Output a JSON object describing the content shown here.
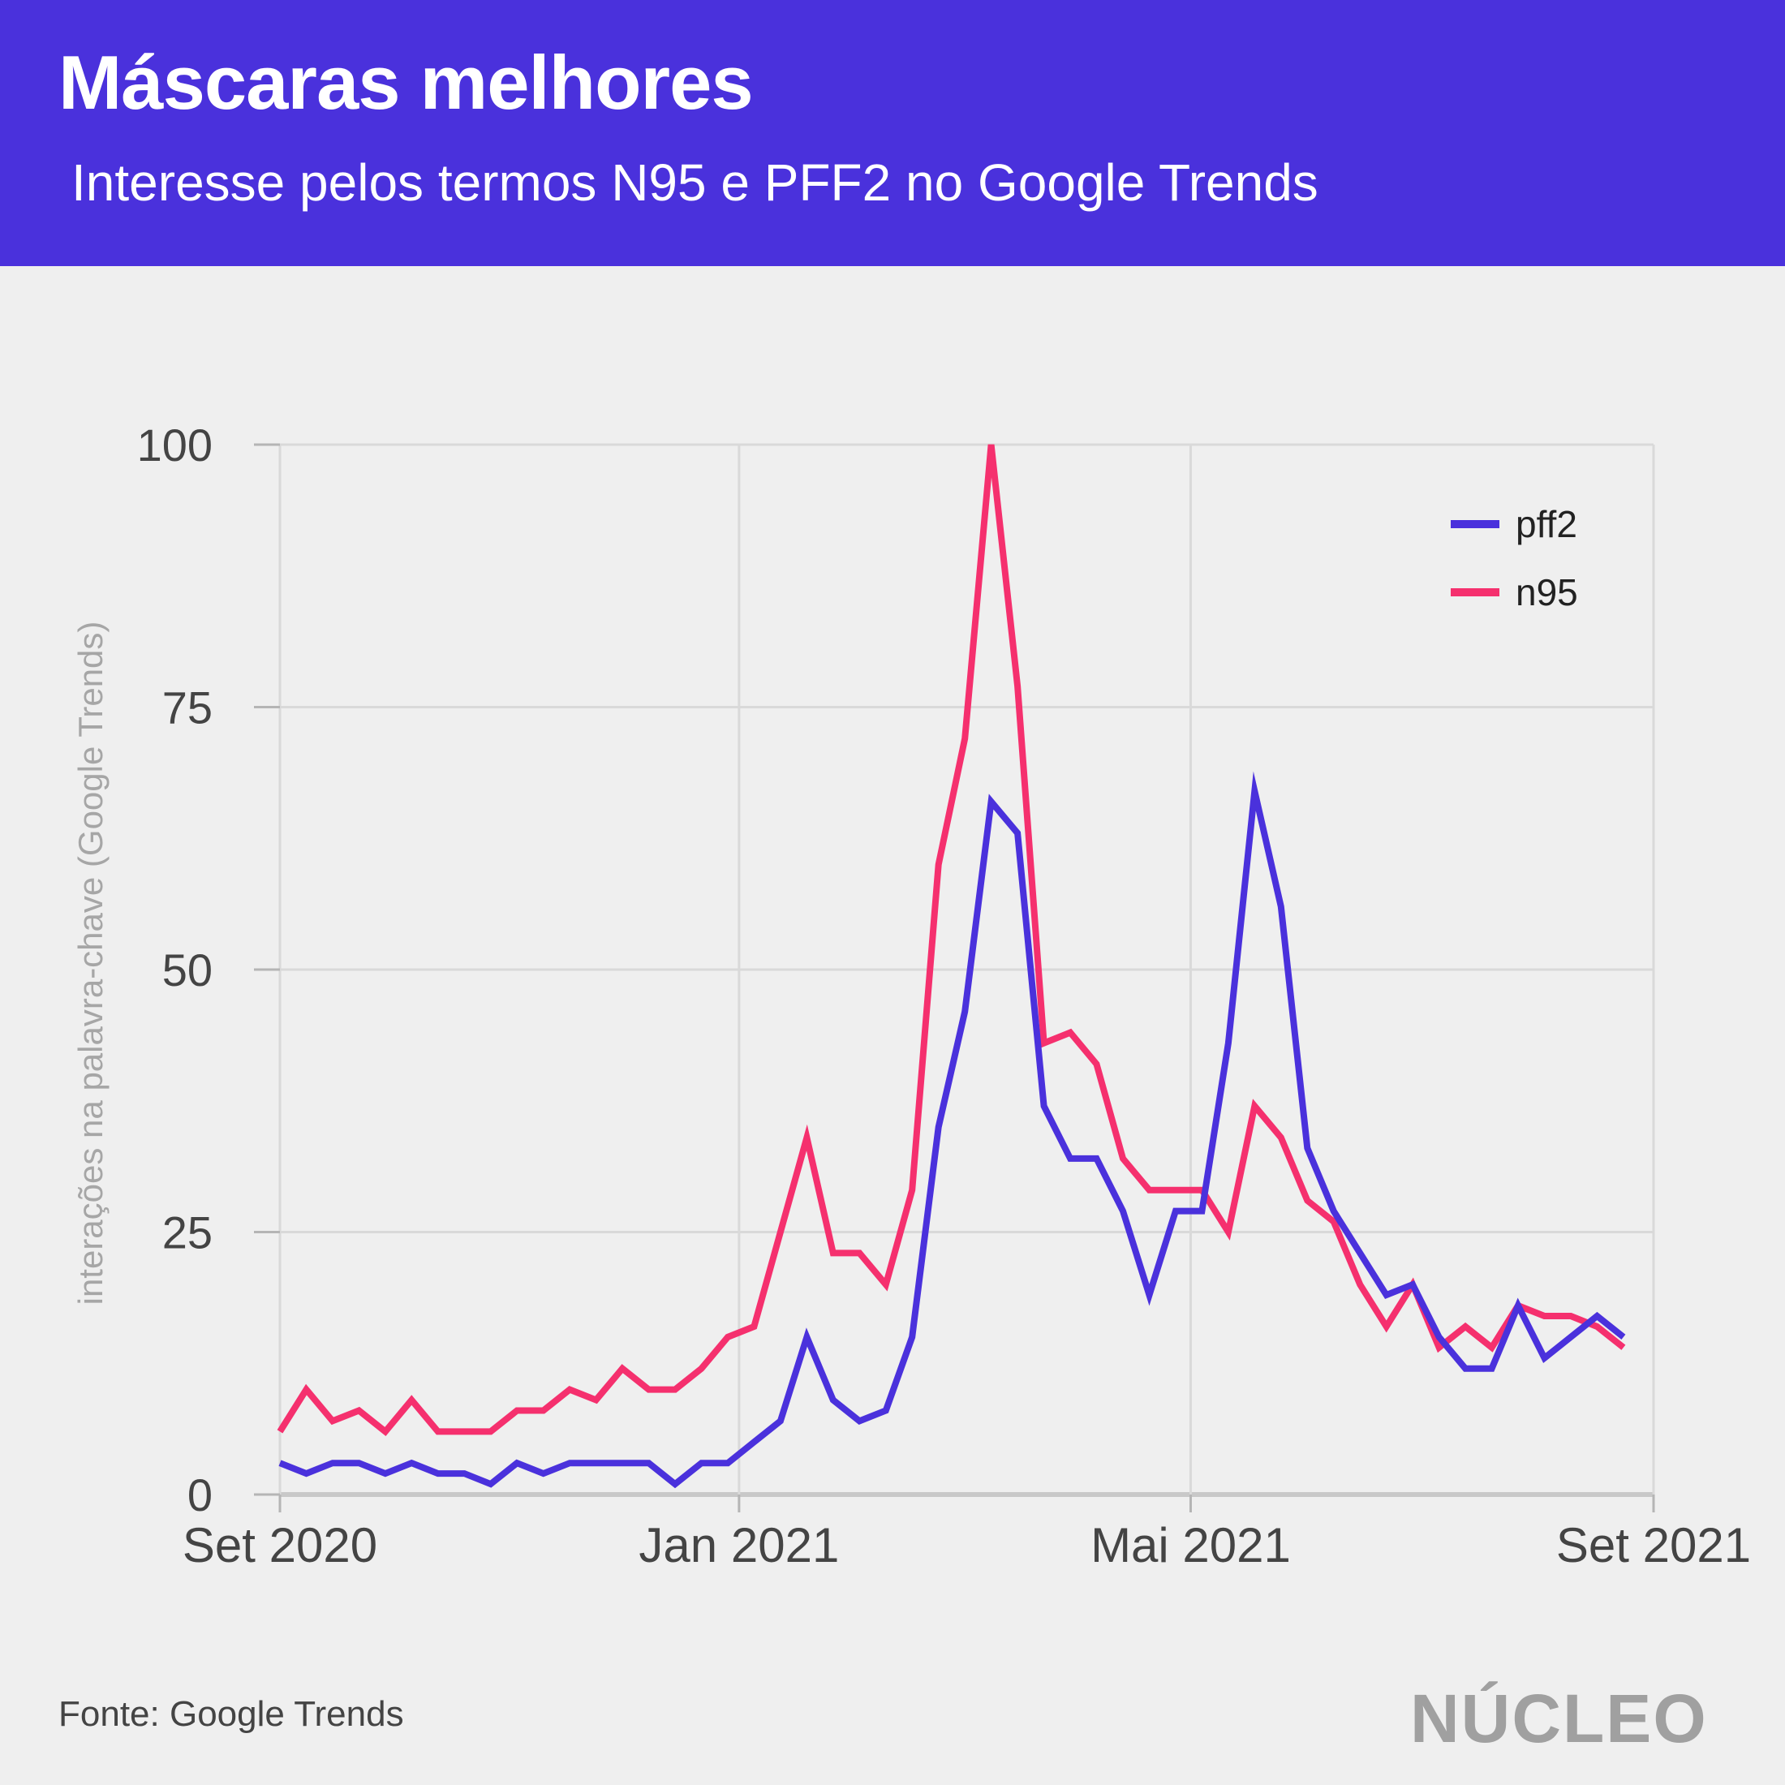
{
  "header": {
    "title": "Máscaras melhores",
    "subtitle": "Interesse pelos termos N95 e PFF2 no Google Trends"
  },
  "footer": {
    "source": "Fonte: Google Trends",
    "logo": "NÚCLEO"
  },
  "colors": {
    "header_bg": "#4a31dc",
    "pff2": "#4a31dc",
    "n95": "#f5306e",
    "grid": "#d9d9d9",
    "ylabel": "#a6a6a6"
  },
  "chart_data": {
    "type": "line",
    "ylabel": "interações na palavra-chave (Google Trends)",
    "xlabel": "",
    "ylim": [
      0,
      100
    ],
    "yticks": [
      0,
      25,
      50,
      75,
      100
    ],
    "xlim": [
      "2020-09-01",
      "2021-09-01"
    ],
    "xticks": [
      {
        "date": "2020-09-01",
        "label": "Set 2020"
      },
      {
        "date": "2021-01-01",
        "label": "Jan 2021"
      },
      {
        "date": "2021-05-01",
        "label": "Mai 2021"
      },
      {
        "date": "2021-09-01",
        "label": "Set 2021"
      }
    ],
    "grid": true,
    "legend_position": "top-right",
    "x": [
      "2020-09-01",
      "2020-09-08",
      "2020-09-15",
      "2020-09-22",
      "2020-09-29",
      "2020-10-06",
      "2020-10-13",
      "2020-10-20",
      "2020-10-27",
      "2020-11-03",
      "2020-11-10",
      "2020-11-17",
      "2020-11-24",
      "2020-12-01",
      "2020-12-08",
      "2020-12-15",
      "2020-12-22",
      "2020-12-29",
      "2021-01-05",
      "2021-01-12",
      "2021-01-19",
      "2021-01-26",
      "2021-02-02",
      "2021-02-09",
      "2021-02-16",
      "2021-02-23",
      "2021-03-02",
      "2021-03-09",
      "2021-03-16",
      "2021-03-23",
      "2021-03-30",
      "2021-04-06",
      "2021-04-13",
      "2021-04-20",
      "2021-04-27",
      "2021-05-04",
      "2021-05-11",
      "2021-05-18",
      "2021-05-25",
      "2021-06-01",
      "2021-06-08",
      "2021-06-15",
      "2021-06-22",
      "2021-06-29",
      "2021-07-06",
      "2021-07-13",
      "2021-07-20",
      "2021-07-27",
      "2021-08-03",
      "2021-08-10",
      "2021-08-17",
      "2021-08-24"
    ],
    "series": [
      {
        "name": "pff2",
        "color": "#4a31dc",
        "values": [
          3,
          2,
          3,
          3,
          2,
          3,
          2,
          2,
          1,
          3,
          2,
          3,
          3,
          3,
          3,
          1,
          3,
          3,
          5,
          7,
          15,
          9,
          7,
          8,
          15,
          35,
          46,
          66,
          63,
          37,
          32,
          32,
          27,
          19,
          27,
          27,
          43,
          67,
          56,
          33,
          27,
          23,
          19,
          20,
          15,
          12,
          12,
          18,
          13,
          15,
          17,
          15
        ]
      },
      {
        "name": "n95",
        "color": "#f5306e",
        "values": [
          6,
          10,
          7,
          8,
          6,
          9,
          6,
          6,
          6,
          8,
          8,
          10,
          9,
          12,
          10,
          10,
          12,
          15,
          16,
          25,
          34,
          23,
          23,
          20,
          29,
          60,
          72,
          100,
          77,
          43,
          44,
          41,
          32,
          29,
          29,
          29,
          25,
          37,
          34,
          28,
          26,
          20,
          16,
          20,
          14,
          16,
          14,
          18,
          17,
          17,
          16,
          14
        ]
      }
    ]
  }
}
